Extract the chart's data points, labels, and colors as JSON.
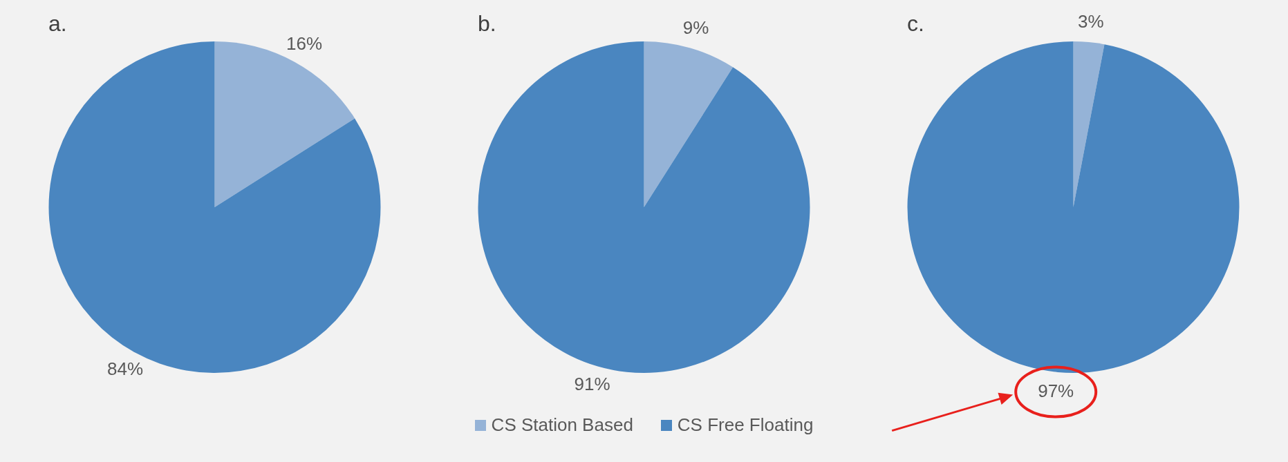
{
  "chart_data": [
    {
      "type": "pie",
      "title": "a.",
      "categories": [
        "CS Station Based",
        "CS Free Floating"
      ],
      "values": [
        16,
        84
      ],
      "colors": [
        "#95b3d7",
        "#4a86c0"
      ],
      "value_labels": [
        "16%",
        "84%"
      ],
      "legend": "bottom"
    },
    {
      "type": "pie",
      "title": "b.",
      "categories": [
        null,
        null
      ],
      "values": [
        9,
        91
      ],
      "colors": [
        "#95b3d7",
        "#4a86c0"
      ],
      "value_labels": [
        "9%",
        "91%"
      ]
    },
    {
      "type": "pie",
      "title": "c.",
      "categories": [
        null,
        null
      ],
      "values": [
        3,
        97
      ],
      "colors": [
        "#95b3d7",
        "#4a86c0"
      ],
      "value_labels": [
        "3%",
        "97%"
      ]
    }
  ]
}
